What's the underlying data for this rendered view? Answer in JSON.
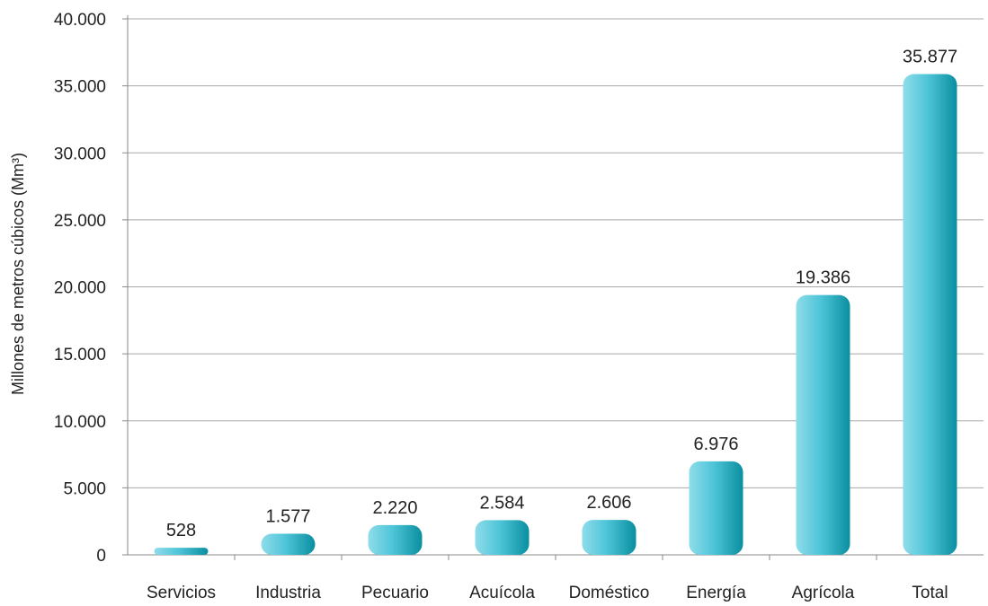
{
  "chart_data": {
    "type": "bar",
    "title": "",
    "xlabel": "",
    "ylabel": "Millones de metros cúbicos (Mm³)",
    "ylim": [
      0,
      40000
    ],
    "yticks": [
      0,
      5000,
      10000,
      15000,
      20000,
      25000,
      30000,
      35000,
      40000
    ],
    "ytick_labels": [
      "0",
      "5.000",
      "10.000",
      "15.000",
      "20.000",
      "25.000",
      "30.000",
      "35.000",
      "40.000"
    ],
    "grid": true,
    "categories": [
      "Servicios",
      "Industria",
      "Pecuario",
      "Acuícola",
      "Doméstico",
      "Energía",
      "Agrícola",
      "Total"
    ],
    "values": [
      528,
      1577,
      2220,
      2584,
      2606,
      6976,
      19386,
      35877
    ],
    "value_labels": [
      "528",
      "1.577",
      "2.220",
      "2.584",
      "2.606",
      "6.976",
      "19.386",
      "35.877"
    ],
    "bar_colors": {
      "light": "#8fdcea",
      "mid": "#4ec5d8",
      "dark": "#0a8fa0"
    },
    "gridline_color": "#a8a8a8",
    "axis_color": "#888888"
  }
}
